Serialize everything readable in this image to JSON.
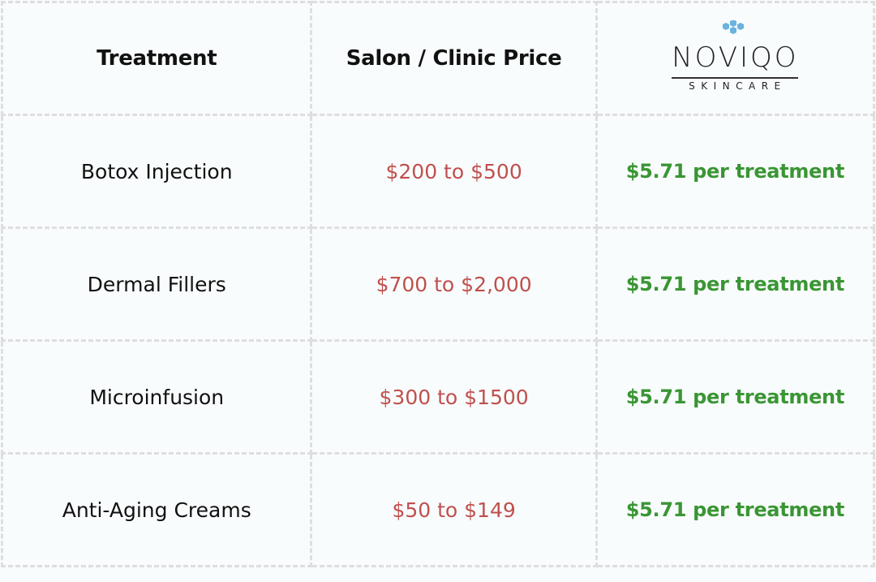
{
  "headers": {
    "treatment": "Treatment",
    "salon_price": "Salon / Clinic Price"
  },
  "logo": {
    "name": "NOVIQO",
    "tagline": "SKINCARE",
    "hex_color": "#6ab2df"
  },
  "colors": {
    "salon_price": "#c0504d",
    "noviqo_price": "#3a9634"
  },
  "rows": [
    {
      "treatment": "Botox Injection",
      "salon_price": "$200 to $500",
      "noviqo_price": "$5.71 per treatment"
    },
    {
      "treatment": "Dermal Fillers",
      "salon_price": "$700 to $2,000",
      "noviqo_price": "$5.71 per treatment"
    },
    {
      "treatment": "Microinfusion",
      "salon_price": "$300 to $1500",
      "noviqo_price": "$5.71 per treatment"
    },
    {
      "treatment": "Anti-Aging Creams",
      "salon_price": "$50 to $149",
      "noviqo_price": "$5.71 per treatment"
    }
  ]
}
